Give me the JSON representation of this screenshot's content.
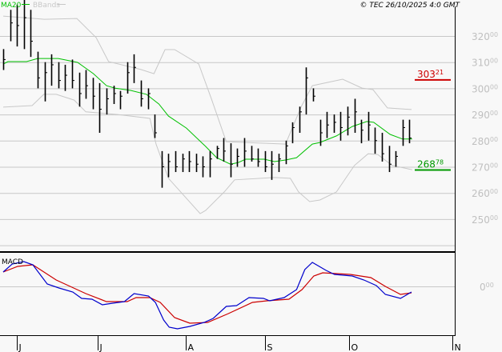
{
  "header": {
    "ma_label": "MA20",
    "bbands_label": "BBands",
    "copyright": "© TEC 26/10/2025 4:0 GMT"
  },
  "colors": {
    "background": "#f8f8f8",
    "bars": "#000000",
    "ma20": "#00c000",
    "bbands": "#c8c8c8",
    "macd": "#0000cc",
    "signal": "#cc0000",
    "grid": "#c8c8c8",
    "axis_text": "#c0c0c0",
    "resistance": "#cc0000",
    "support": "#009900"
  },
  "chart_data": [
    {
      "type": "ohlc",
      "title": "",
      "series_fields": [
        "high",
        "low",
        "close"
      ],
      "x_tick_labels": [
        {
          "bar": 2,
          "label": "J"
        },
        {
          "bar": 13.7,
          "label": "J"
        },
        {
          "bar": 26.5,
          "label": "A"
        },
        {
          "bar": 38,
          "label": "S"
        },
        {
          "bar": 50.2,
          "label": "O"
        },
        {
          "bar": 65.2,
          "label": "N"
        }
      ],
      "y_ticks": [
        {
          "value": 320,
          "main": "320",
          "dec": "00"
        },
        {
          "value": 310,
          "main": "310",
          "dec": "00"
        },
        {
          "value": 300,
          "main": "300",
          "dec": "00"
        },
        {
          "value": 290,
          "main": "290",
          "dec": "00"
        },
        {
          "value": 280,
          "main": "280",
          "dec": "00"
        },
        {
          "value": 270,
          "main": "270",
          "dec": "00"
        },
        {
          "value": 260,
          "main": "260",
          "dec": "00"
        },
        {
          "value": 250,
          "main": "250",
          "dec": "00"
        }
      ],
      "gridlines": [
        320,
        310,
        300,
        290,
        280,
        270,
        260,
        250,
        240
      ],
      "ylim": [
        238,
        332
      ],
      "grid": true,
      "bars": [
        [
          315,
          307,
          311
        ],
        [
          330,
          318,
          325
        ],
        [
          332,
          316,
          324
        ],
        [
          334,
          315,
          327
        ],
        [
          330,
          312,
          318
        ],
        [
          314,
          300,
          304
        ],
        [
          310,
          295,
          306
        ],
        [
          313,
          301,
          309
        ],
        [
          310,
          300,
          303
        ],
        [
          309,
          299,
          305
        ],
        [
          311,
          300,
          303
        ],
        [
          306,
          293,
          298
        ],
        [
          307,
          296,
          301
        ],
        [
          304,
          292,
          297
        ],
        [
          302,
          283,
          292
        ],
        [
          300,
          290,
          296
        ],
        [
          301,
          294,
          298
        ],
        [
          299,
          292,
          297
        ],
        [
          310,
          298,
          306
        ],
        [
          313,
          302,
          308
        ],
        [
          303,
          293,
          296
        ],
        [
          300,
          292,
          298
        ],
        [
          290,
          281,
          283
        ],
        [
          276,
          262,
          270
        ],
        [
          275,
          266,
          272
        ],
        [
          276,
          268,
          270
        ],
        [
          275,
          268,
          273
        ],
        [
          276,
          268,
          272
        ],
        [
          275,
          268,
          271
        ],
        [
          274,
          266,
          270
        ],
        [
          276,
          266,
          273
        ],
        [
          278,
          273,
          277
        ],
        [
          281,
          272,
          276
        ],
        [
          279,
          266,
          271
        ],
        [
          277,
          270,
          274
        ],
        [
          281,
          270,
          276
        ],
        [
          278,
          272,
          273
        ],
        [
          277,
          270,
          272
        ],
        [
          276,
          268,
          270
        ],
        [
          276,
          265,
          271
        ],
        [
          275,
          268,
          273
        ],
        [
          280,
          271,
          278
        ],
        [
          287,
          279,
          285
        ],
        [
          293,
          283,
          291
        ],
        [
          308,
          290,
          304
        ],
        [
          300,
          295,
          297
        ],
        [
          288,
          278,
          283
        ],
        [
          291,
          281,
          286
        ],
        [
          290,
          283,
          287
        ],
        [
          291,
          280,
          285
        ],
        [
          293,
          282,
          289
        ],
        [
          296,
          283,
          291
        ],
        [
          288,
          279,
          284
        ],
        [
          291,
          280,
          286
        ],
        [
          285,
          275,
          280
        ],
        [
          283,
          272,
          275
        ],
        [
          278,
          268,
          271
        ],
        [
          276,
          270,
          274
        ],
        [
          288,
          278,
          285
        ],
        [
          288,
          279,
          281
        ]
      ],
      "ma20": [
        [
          0,
          309.3
        ],
        [
          0.7,
          310.2
        ],
        [
          3.4,
          310.2
        ],
        [
          5,
          311.4
        ],
        [
          8,
          311.4
        ],
        [
          10.8,
          309.9
        ],
        [
          13.1,
          305.6
        ],
        [
          15,
          301
        ],
        [
          16.2,
          300.1
        ],
        [
          18.5,
          299.2
        ],
        [
          20.8,
          297.7
        ],
        [
          22.6,
          294
        ],
        [
          24,
          289.4
        ],
        [
          26.6,
          284.8
        ],
        [
          29.4,
          277.8
        ],
        [
          31,
          273.5
        ],
        [
          33,
          271
        ],
        [
          34.1,
          271.6
        ],
        [
          35.2,
          272.9
        ],
        [
          37.9,
          272.9
        ],
        [
          39.4,
          272
        ],
        [
          41,
          272.6
        ],
        [
          42.6,
          273.5
        ],
        [
          44.9,
          278.7
        ],
        [
          46,
          279.3
        ],
        [
          48.4,
          281.8
        ],
        [
          50.7,
          285.4
        ],
        [
          52.8,
          287.3
        ],
        [
          53.8,
          287
        ],
        [
          56.2,
          282.4
        ],
        [
          58,
          280.6
        ],
        [
          59.4,
          280.6
        ]
      ],
      "bband_upper": [
        [
          0,
          327.6
        ],
        [
          6,
          326.4
        ],
        [
          10.7,
          326.7
        ],
        [
          13.5,
          319.4
        ],
        [
          15.3,
          310.2
        ],
        [
          20,
          307.2
        ],
        [
          21.9,
          305.6
        ],
        [
          23.5,
          314.8
        ],
        [
          24.9,
          314.8
        ],
        [
          28.4,
          309.3
        ],
        [
          30.3,
          295.5
        ],
        [
          32.4,
          279.6
        ],
        [
          41,
          278.7
        ],
        [
          43.3,
          293.1
        ],
        [
          44.9,
          301
        ],
        [
          49.3,
          303.5
        ],
        [
          52.1,
          300.1
        ],
        [
          53.7,
          299.5
        ],
        [
          55.8,
          292.5
        ],
        [
          59.3,
          291.9
        ]
      ],
      "bband_lower": [
        [
          0,
          292.8
        ],
        [
          4.2,
          293.4
        ],
        [
          5.9,
          297.7
        ],
        [
          7.7,
          297.7
        ],
        [
          10.3,
          295.5
        ],
        [
          12,
          291
        ],
        [
          16.6,
          290
        ],
        [
          21.3,
          288.5
        ],
        [
          22.2,
          278.7
        ],
        [
          24,
          265.6
        ],
        [
          28.6,
          252.1
        ],
        [
          29.4,
          253.3
        ],
        [
          32.1,
          260.4
        ],
        [
          33.6,
          265
        ],
        [
          39.4,
          265.9
        ],
        [
          41.7,
          265.6
        ],
        [
          42.9,
          260.4
        ],
        [
          44.5,
          256.7
        ],
        [
          46,
          257.3
        ],
        [
          48.4,
          260.4
        ],
        [
          51,
          270.5
        ],
        [
          53,
          275
        ],
        [
          54.4,
          274.7
        ],
        [
          56.5,
          270.5
        ],
        [
          59.4,
          268.9
        ]
      ],
      "levels": [
        {
          "value": 303.21,
          "main": "303",
          "dec": "21",
          "kind": "resistance"
        },
        {
          "value": 268.78,
          "main": "268",
          "dec": "78",
          "kind": "support"
        }
      ]
    },
    {
      "type": "line",
      "title": "MACD",
      "y_ticks": [
        {
          "value": 0,
          "main": "0",
          "dec": "00"
        }
      ],
      "ylim": [
        -12.2,
        8.4
      ],
      "macd": [
        [
          0,
          3.6
        ],
        [
          1.3,
          5.6
        ],
        [
          3,
          6.2
        ],
        [
          4.3,
          5.4
        ],
        [
          6.4,
          0.6
        ],
        [
          8.1,
          -0.4
        ],
        [
          10.1,
          -1.4
        ],
        [
          11.4,
          -3
        ],
        [
          12.9,
          -3.2
        ],
        [
          14.4,
          -4.6
        ],
        [
          15.9,
          -4.2
        ],
        [
          17.6,
          -3.8
        ],
        [
          19,
          -1.8
        ],
        [
          21.1,
          -2.4
        ],
        [
          22.1,
          -4
        ],
        [
          23.3,
          -8.4
        ],
        [
          24.1,
          -10.2
        ],
        [
          25.3,
          -10.6
        ],
        [
          27.1,
          -10
        ],
        [
          29.2,
          -9
        ],
        [
          30.5,
          -8
        ],
        [
          32.4,
          -5
        ],
        [
          33.9,
          -4.8
        ],
        [
          35.7,
          -2.8
        ],
        [
          37.8,
          -3
        ],
        [
          38.7,
          -3.6
        ],
        [
          40.8,
          -2.8
        ],
        [
          42.6,
          -0.8
        ],
        [
          43.8,
          4.2
        ],
        [
          44.9,
          6
        ],
        [
          46.9,
          4
        ],
        [
          48.1,
          3
        ],
        [
          50.7,
          2.6
        ],
        [
          52.4,
          1.6
        ],
        [
          54.2,
          0.2
        ],
        [
          55.5,
          -2
        ],
        [
          57.7,
          -3
        ],
        [
          59.3,
          -1.4
        ]
      ],
      "signal": [
        [
          0,
          3.6
        ],
        [
          2.1,
          5
        ],
        [
          4.3,
          5.4
        ],
        [
          7.7,
          1.6
        ],
        [
          12,
          -1.8
        ],
        [
          15,
          -3.8
        ],
        [
          18,
          -3.8
        ],
        [
          19.3,
          -2.8
        ],
        [
          21.3,
          -2.8
        ],
        [
          22.8,
          -4
        ],
        [
          24.9,
          -7.8
        ],
        [
          27.1,
          -9.2
        ],
        [
          29.7,
          -9
        ],
        [
          32.7,
          -6.8
        ],
        [
          36.2,
          -4
        ],
        [
          38.3,
          -3.6
        ],
        [
          41.5,
          -3.2
        ],
        [
          43.4,
          -0.8
        ],
        [
          45.1,
          2.6
        ],
        [
          46.4,
          3.4
        ],
        [
          50.4,
          3
        ],
        [
          53.4,
          2.2
        ],
        [
          55.5,
          0
        ],
        [
          57.7,
          -2
        ],
        [
          59.3,
          -1.6
        ]
      ]
    }
  ]
}
